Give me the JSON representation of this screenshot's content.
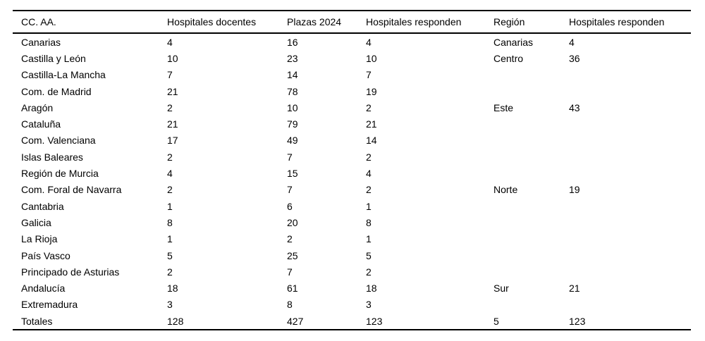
{
  "chart_data": {
    "type": "table",
    "columns": [
      "CC. AA.",
      "Hospitales docentes",
      "Plazas 2024",
      "Hospitales responden",
      "Región",
      "Hospitales responden"
    ],
    "rows": [
      [
        "Canarias",
        "4",
        "16",
        "4",
        "Canarias",
        "4"
      ],
      [
        "Castilla y León",
        "10",
        "23",
        "10",
        "Centro",
        "36"
      ],
      [
        "Castilla-La Mancha",
        "7",
        "14",
        "7",
        "",
        ""
      ],
      [
        "Com. de Madrid",
        "21",
        "78",
        "19",
        "",
        ""
      ],
      [
        "Aragón",
        "2",
        "10",
        "2",
        "Este",
        "43"
      ],
      [
        "Cataluña",
        "21",
        "79",
        "21",
        "",
        ""
      ],
      [
        "Com. Valenciana",
        "17",
        "49",
        "14",
        "",
        ""
      ],
      [
        "Islas Baleares",
        "2",
        "7",
        "2",
        "",
        ""
      ],
      [
        "Región de Murcia",
        "4",
        "15",
        "4",
        "",
        ""
      ],
      [
        "Com. Foral de Navarra",
        "2",
        "7",
        "2",
        "Norte",
        "19"
      ],
      [
        "Cantabria",
        "1",
        "6",
        "1",
        "",
        ""
      ],
      [
        "Galicia",
        "8",
        "20",
        "8",
        "",
        ""
      ],
      [
        "La Rioja",
        "1",
        "2",
        "1",
        "",
        ""
      ],
      [
        "País Vasco",
        "5",
        "25",
        "5",
        "",
        ""
      ],
      [
        "Principado de Asturias",
        "2",
        "7",
        "2",
        "",
        ""
      ],
      [
        "Andalucía",
        "18",
        "61",
        "18",
        "Sur",
        "21"
      ],
      [
        "Extremadura",
        "3",
        "8",
        "3",
        "",
        ""
      ],
      [
        "Totales",
        "128",
        "427",
        "123",
        "5",
        "123"
      ]
    ],
    "region_groups": [
      {
        "region": "Canarias",
        "hospitales_responden": 4,
        "first_row": "Canarias"
      },
      {
        "region": "Centro",
        "hospitales_responden": 36,
        "first_row": "Castilla y León"
      },
      {
        "region": "Este",
        "hospitales_responden": 43,
        "first_row": "Aragón"
      },
      {
        "region": "Norte",
        "hospitales_responden": 19,
        "first_row": "Com. Foral de Navarra"
      },
      {
        "region": "Sur",
        "hospitales_responden": 21,
        "first_row": "Andalucía"
      }
    ],
    "totals": {
      "label": "Totales",
      "hospitales_docentes": 128,
      "plazas_2024": 427,
      "hospitales_responden": 123,
      "num_regiones": 5,
      "region_hospitales_responden": 123
    },
    "layout": {
      "grid": "horizontal-rules-only",
      "rule_color": "#000000",
      "text_color": "#000000",
      "background": "#ffffff"
    }
  }
}
